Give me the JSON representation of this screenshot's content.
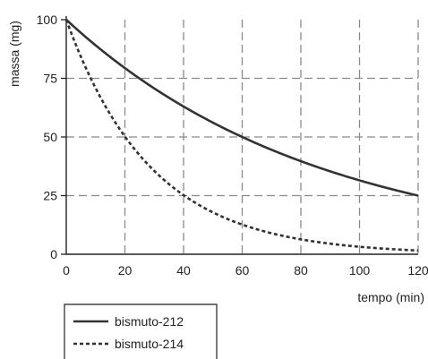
{
  "chart_data": {
    "type": "line",
    "xlabel": "tempo (min)",
    "ylabel": "massa (mg)",
    "xlim": [
      0,
      120
    ],
    "ylim": [
      0,
      100
    ],
    "x_ticks": [
      "0",
      "20",
      "40",
      "60",
      "80",
      "100",
      "120"
    ],
    "y_ticks": [
      "0",
      "25",
      "50",
      "75",
      "100"
    ],
    "grid": true,
    "legend_position": "bottom-left",
    "series": [
      {
        "name": "bismuto-212",
        "style": "solid",
        "color": "#333333",
        "x": [
          0,
          10,
          20,
          30,
          40,
          50,
          60,
          70,
          80,
          90,
          100,
          110,
          120
        ],
        "y": [
          100,
          89.1,
          79.4,
          70.7,
          63.0,
          56.1,
          50.0,
          44.5,
          39.7,
          35.4,
          31.5,
          28.1,
          25.0
        ]
      },
      {
        "name": "bismuto-214",
        "style": "dashed",
        "color": "#333333",
        "x": [
          0,
          5,
          10,
          15,
          20,
          25,
          30,
          40,
          50,
          60,
          70,
          80,
          90,
          100,
          110,
          120
        ],
        "y": [
          100,
          84.1,
          70.7,
          59.5,
          50.0,
          42.0,
          35.4,
          25.0,
          17.7,
          12.5,
          8.8,
          6.3,
          4.4,
          3.1,
          2.2,
          1.6
        ]
      }
    ]
  }
}
